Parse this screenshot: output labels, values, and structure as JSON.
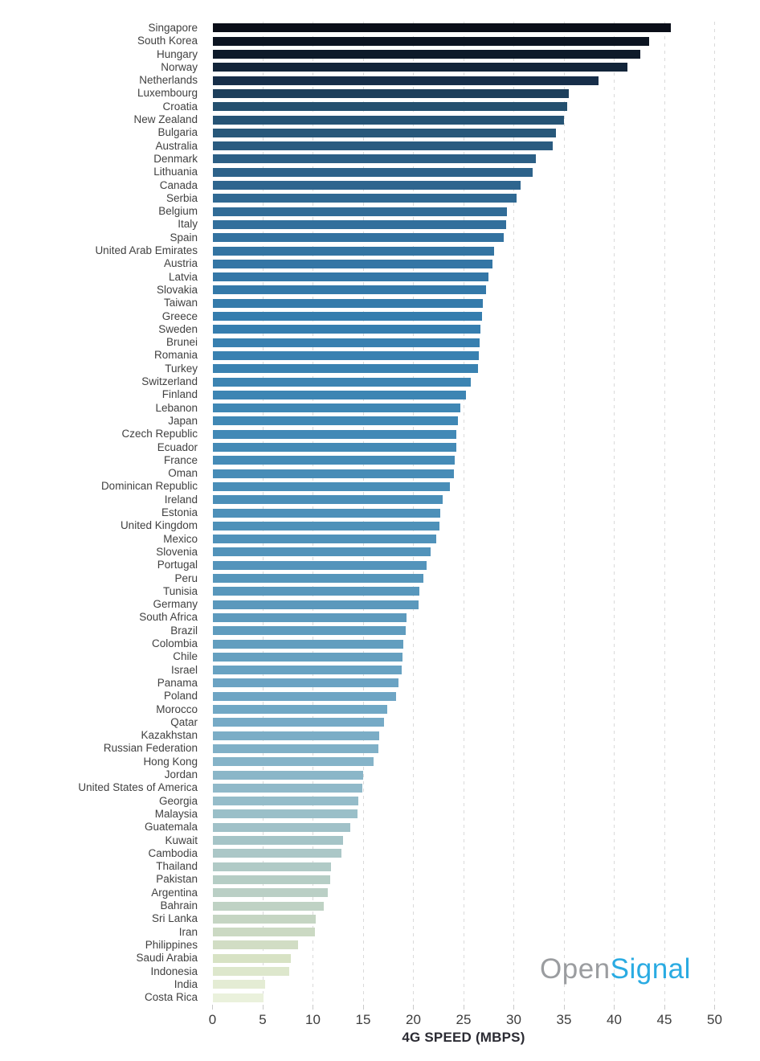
{
  "chart_data": {
    "type": "bar",
    "orientation": "horizontal",
    "title": "",
    "xlabel": "4G SPEED (MBPS)",
    "ylabel": "",
    "xlim": [
      0,
      50
    ],
    "grid": "vertical-dashed",
    "legend": "none",
    "x_ticks": [
      0,
      5,
      10,
      15,
      20,
      25,
      30,
      35,
      40,
      45,
      50
    ],
    "x_tick_labels": [
      "0",
      "5",
      "10",
      "15",
      "20",
      "25",
      "30",
      "35",
      "40",
      "45",
      "50"
    ],
    "categories": [
      "Singapore",
      "South Korea",
      "Hungary",
      "Norway",
      "Netherlands",
      "Luxembourg",
      "Croatia",
      "New Zealand",
      "Bulgaria",
      "Australia",
      "Denmark",
      "Lithuania",
      "Canada",
      "Serbia",
      "Belgium",
      "Italy",
      "Spain",
      "United Arab Emirates",
      "Austria",
      "Latvia",
      "Slovakia",
      "Taiwan",
      "Greece",
      "Sweden",
      "Brunei",
      "Romania",
      "Turkey",
      "Switzerland",
      "Finland",
      "Lebanon",
      "Japan",
      "Czech Republic",
      "Ecuador",
      "France",
      "Oman",
      "Dominican Republic",
      "Ireland",
      "Estonia",
      "United Kingdom",
      "Mexico",
      "Slovenia",
      "Portugal",
      "Peru",
      "Tunisia",
      "Germany",
      "South Africa",
      "Brazil",
      "Colombia",
      "Chile",
      "Israel",
      "Panama",
      "Poland",
      "Morocco",
      "Qatar",
      "Kazakhstan",
      "Russian Federation",
      "Hong Kong",
      "Jordan",
      "United States of America",
      "Georgia",
      "Malaysia",
      "Guatemala",
      "Kuwait",
      "Cambodia",
      "Thailand",
      "Pakistan",
      "Argentina",
      "Bahrain",
      "Sri Lanka",
      "Iran",
      "Philippines",
      "Saudi Arabia",
      "Indonesia",
      "India",
      "Costa Rica"
    ],
    "values": [
      45.6,
      43.5,
      42.6,
      41.3,
      38.4,
      35.5,
      35.3,
      35.0,
      34.2,
      33.9,
      32.2,
      31.9,
      30.7,
      30.3,
      29.3,
      29.2,
      29.0,
      28.0,
      27.9,
      27.5,
      27.2,
      26.9,
      26.8,
      26.7,
      26.6,
      26.5,
      26.4,
      25.7,
      25.2,
      24.7,
      24.4,
      24.3,
      24.3,
      24.1,
      24.0,
      23.6,
      22.9,
      22.7,
      22.6,
      22.3,
      21.7,
      21.3,
      21.0,
      20.6,
      20.5,
      19.3,
      19.2,
      19.0,
      18.9,
      18.8,
      18.5,
      18.3,
      17.4,
      17.1,
      16.6,
      16.5,
      16.0,
      15.0,
      14.9,
      14.5,
      14.4,
      13.7,
      13.0,
      12.8,
      11.8,
      11.7,
      11.5,
      11.1,
      10.3,
      10.2,
      8.5,
      7.8,
      7.6,
      5.2,
      5.1
    ],
    "unit": "Mbps",
    "palette_stops": [
      [
        0.0,
        "#0a0e18"
      ],
      [
        0.027,
        "#0e1a2a"
      ],
      [
        0.055,
        "#172f4a"
      ],
      [
        0.081,
        "#24506f"
      ],
      [
        0.135,
        "#2c5f85"
      ],
      [
        0.216,
        "#3372a0"
      ],
      [
        0.3,
        "#357dae"
      ],
      [
        0.405,
        "#4088b5"
      ],
      [
        0.54,
        "#5293ba"
      ],
      [
        0.61,
        "#5d9abd"
      ],
      [
        0.7,
        "#70a7c5"
      ],
      [
        0.785,
        "#90b9c9"
      ],
      [
        0.85,
        "#aac7c7"
      ],
      [
        0.92,
        "#c5d5c3"
      ],
      [
        0.96,
        "#d7e2c4"
      ],
      [
        1.0,
        "#eaf1dc"
      ]
    ],
    "gridline_color": "#dadada",
    "label_color": "#414141",
    "tick_color": "#3d3d3d"
  },
  "branding": {
    "logo_part1": "Open",
    "logo_part2": "Signal",
    "gray": "#9b9da0",
    "blue": "#2aabe2"
  }
}
